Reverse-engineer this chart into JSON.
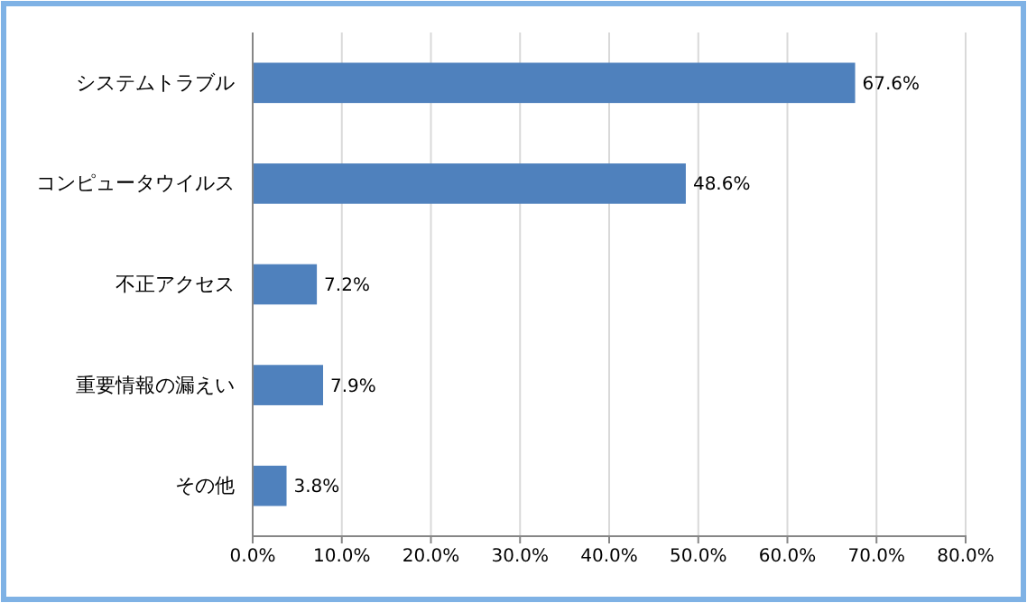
{
  "chart_data": {
    "type": "bar",
    "orientation": "horizontal",
    "categories": [
      "システムトラブル",
      "コンピュータウイルス",
      "不正アクセス",
      "重要情報の漏えい",
      "その他"
    ],
    "values": [
      67.6,
      48.6,
      7.2,
      7.9,
      3.8
    ],
    "value_labels": [
      "67.6%",
      "48.6%",
      "7.2%",
      "7.9%",
      "3.8%"
    ],
    "color": "#4f81bd",
    "xlim": [
      0,
      80
    ],
    "xticks": [
      {
        "value": 0,
        "label": "0.0%"
      },
      {
        "value": 10,
        "label": "10.0%"
      },
      {
        "value": 20,
        "label": "20.0%"
      },
      {
        "value": 30,
        "label": "30.0%"
      },
      {
        "value": 40,
        "label": "40.0%"
      },
      {
        "value": 50,
        "label": "50.0%"
      },
      {
        "value": 60,
        "label": "60.0%"
      },
      {
        "value": 70,
        "label": "70.0%"
      },
      {
        "value": 80,
        "label": "80.0%"
      }
    ],
    "grid": "x"
  }
}
